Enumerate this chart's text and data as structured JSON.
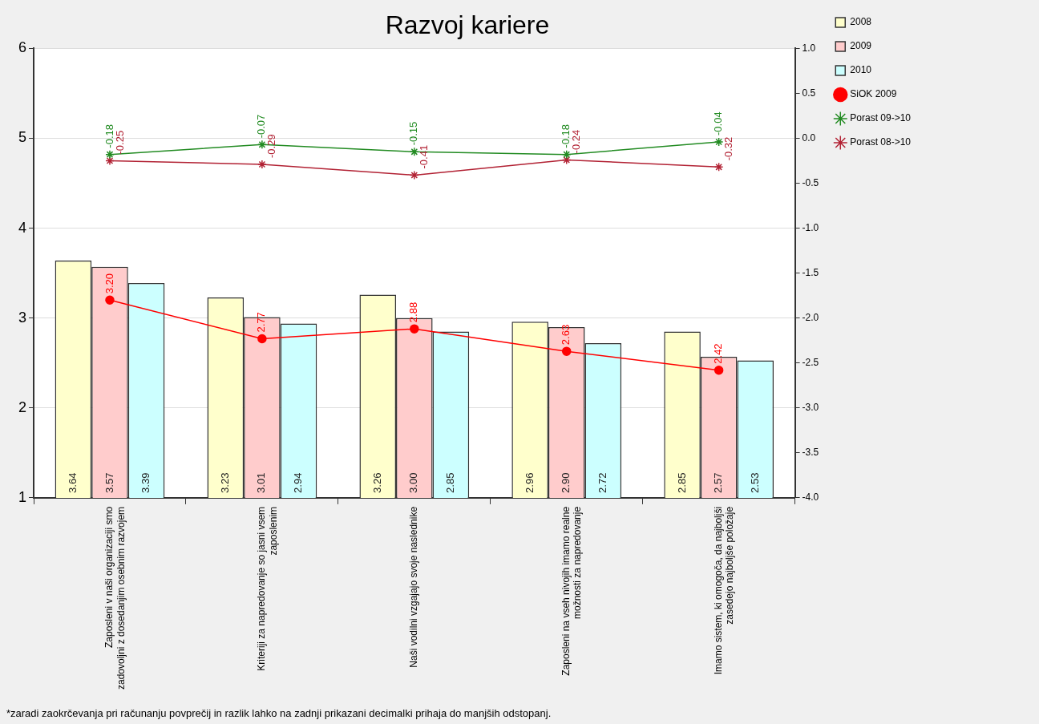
{
  "chart_data": {
    "type": "bar",
    "title": "Razvoj kariere",
    "categories": [
      "Zaposleni v naši organizaciji smo zadovoljni z dosedanjim osebnim razvojem",
      "Kriteriji za napredovanje so jasni vsem zaposlenim",
      "Naši vodilni vzgajajo svoje naslednike",
      "Zaposleni na vseh nivojih imamo realne možnosti za napredovanje",
      "Imamo sistem, ki omogoča, da najboljši zasedejo najboljše položaje"
    ],
    "series": [
      {
        "name": "2008",
        "color": "#ffffcc",
        "values": [
          3.64,
          3.23,
          3.26,
          2.96,
          2.85
        ],
        "value_labels": [
          "3.64",
          "3.23",
          "3.26",
          "2.96",
          "2.85"
        ]
      },
      {
        "name": "2009",
        "color": "#ffcccc",
        "values": [
          3.57,
          3.01,
          3.0,
          2.9,
          2.57
        ],
        "value_labels": [
          "3.57",
          "3.01",
          "3.00",
          "2.90",
          "2.57"
        ]
      },
      {
        "name": "2010",
        "color": "#ccffff",
        "values": [
          3.39,
          2.94,
          2.85,
          2.72,
          2.53
        ],
        "value_labels": [
          "3.39",
          "2.94",
          "2.85",
          "2.72",
          "2.53"
        ]
      },
      {
        "name": "SiOK 2009",
        "type": "line",
        "color": "#ff0000",
        "marker": "circle",
        "values": [
          3.2,
          2.77,
          2.88,
          2.63,
          2.42
        ],
        "value_labels": [
          "3.20",
          "2.77",
          "2.88",
          "2.63",
          "2.42"
        ]
      },
      {
        "name": "Porast 09->10",
        "type": "line",
        "axis": "y2",
        "color": "#228b22",
        "marker": "cross",
        "values": [
          -0.18,
          -0.07,
          -0.15,
          -0.18,
          -0.04
        ],
        "value_labels": [
          "-0.18",
          "-0.07",
          "-0.15",
          "-0.18",
          "-0.04"
        ]
      },
      {
        "name": "Porast 08->10",
        "type": "line",
        "axis": "y2",
        "color": "#b22234",
        "marker": "cross",
        "values": [
          -0.25,
          -0.29,
          -0.41,
          -0.24,
          -0.32
        ],
        "value_labels": [
          "-0.25",
          "-0.29",
          "-0.41",
          "-0.24",
          "-0.32"
        ]
      }
    ],
    "ylim": [
      1,
      6
    ],
    "yticks": [
      1,
      2,
      3,
      4,
      5,
      6
    ],
    "y2lim": [
      -4,
      1
    ],
    "y2ticks": [
      {
        "value": -4,
        "label": "-4.0"
      },
      -3.5,
      {
        "value": -3,
        "label": "-3.0"
      },
      -2.5,
      {
        "value": -2,
        "label": "-2.0"
      },
      -1.5,
      {
        "value": -1,
        "label": "-1.0"
      },
      -0.5,
      {
        "value": 0,
        "label": "0.0"
      },
      0.5,
      {
        "value": 1,
        "label": "1.0"
      }
    ],
    "grid": "y",
    "legend": "right",
    "annotations": [
      "*zaradi zaokrčevanja pri računanju povprečij in razlik lahko na zadnji prikazani decimalki prihaja do manjših odstopanj."
    ]
  }
}
